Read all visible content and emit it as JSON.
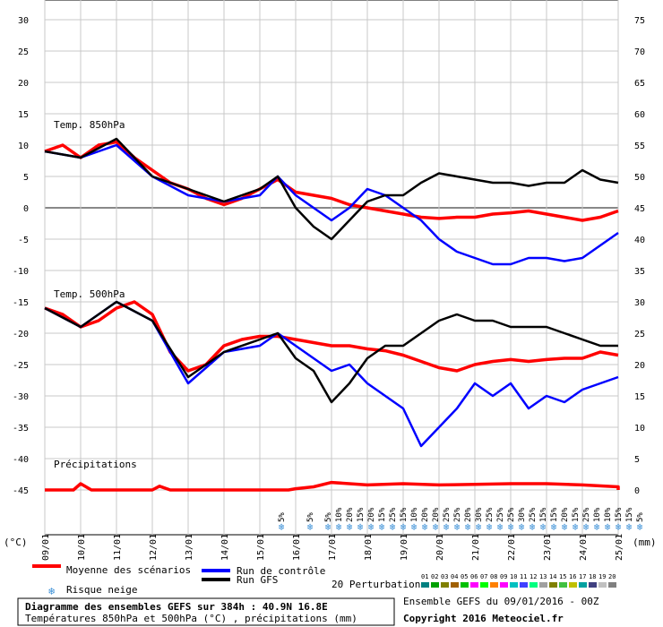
{
  "chart_data": {
    "type": "line",
    "x_dates": [
      "09/01",
      "10/01",
      "11/01",
      "12/01",
      "13/01",
      "14/01",
      "15/01",
      "16/01",
      "17/01",
      "18/01",
      "19/01",
      "20/01",
      "21/01",
      "22/01",
      "23/01",
      "24/01",
      "25/01"
    ],
    "x_unit_label": "(°C)",
    "x_unit_label_right": "(mm)",
    "left_axis": {
      "ticks": [
        30,
        25,
        20,
        15,
        10,
        5,
        0,
        -5,
        -10,
        -15,
        -20,
        -25,
        -30,
        -35,
        -40,
        -45
      ],
      "range": [
        -45,
        30
      ]
    },
    "right_axis": {
      "ticks": [
        75,
        70,
        65,
        60,
        55,
        50,
        45,
        40,
        35,
        30,
        25,
        20,
        15,
        10,
        5,
        0
      ],
      "range": [
        0,
        75
      ]
    },
    "panel_labels": {
      "t850": "Temp. 850hPa",
      "t500": "Temp. 500hPa",
      "precip": "Précipitations"
    },
    "series": [
      {
        "name": "Moyenne des scénarios",
        "color": "#ff0000",
        "t850": [
          [
            0,
            9
          ],
          [
            0.5,
            10
          ],
          [
            1,
            8
          ],
          [
            1.5,
            10
          ],
          [
            2,
            10.5
          ],
          [
            2.5,
            8
          ],
          [
            3,
            6
          ],
          [
            3.5,
            4
          ],
          [
            4,
            3
          ],
          [
            4.5,
            1.5
          ],
          [
            5,
            0.5
          ],
          [
            5.5,
            1.5
          ],
          [
            6,
            3
          ],
          [
            6.5,
            4.5
          ],
          [
            7,
            2.5
          ],
          [
            7.5,
            2
          ],
          [
            8,
            1.5
          ],
          [
            8.5,
            0.5
          ],
          [
            9,
            0
          ],
          [
            9.5,
            -0.5
          ],
          [
            10,
            -1
          ],
          [
            10.5,
            -1.5
          ],
          [
            11,
            -1.7
          ],
          [
            11.5,
            -1.5
          ],
          [
            12,
            -1.5
          ],
          [
            12.5,
            -1
          ],
          [
            13,
            -0.8
          ],
          [
            13.5,
            -0.5
          ],
          [
            14,
            -1
          ],
          [
            14.5,
            -1.5
          ],
          [
            15,
            -2
          ],
          [
            15.5,
            -1.5
          ],
          [
            16,
            -0.5
          ]
        ],
        "t500": [
          [
            0,
            -16
          ],
          [
            0.5,
            -17
          ],
          [
            1,
            -19
          ],
          [
            1.5,
            -18
          ],
          [
            2,
            -16
          ],
          [
            2.5,
            -15
          ],
          [
            3,
            -17
          ],
          [
            3.5,
            -23
          ],
          [
            4,
            -26
          ],
          [
            4.5,
            -25
          ],
          [
            5,
            -22
          ],
          [
            5.5,
            -21
          ],
          [
            6,
            -20.5
          ],
          [
            6.5,
            -20.5
          ],
          [
            7,
            -21
          ],
          [
            7.5,
            -21.5
          ],
          [
            8,
            -22
          ],
          [
            8.5,
            -22
          ],
          [
            9,
            -22.5
          ],
          [
            9.5,
            -22.8
          ],
          [
            10,
            -23.5
          ],
          [
            10.5,
            -24.5
          ],
          [
            11,
            -25.5
          ],
          [
            11.5,
            -26
          ],
          [
            12,
            -25
          ],
          [
            12.5,
            -24.5
          ],
          [
            13,
            -24.2
          ],
          [
            13.5,
            -24.5
          ],
          [
            14,
            -24.2
          ],
          [
            14.5,
            -24
          ],
          [
            15,
            -24
          ],
          [
            15.5,
            -23
          ],
          [
            16,
            -23.5
          ]
        ],
        "precip": [
          [
            0,
            0
          ],
          [
            0.8,
            0
          ],
          [
            1,
            1
          ],
          [
            1.3,
            0
          ],
          [
            3,
            0
          ],
          [
            3.2,
            0.6
          ],
          [
            3.5,
            0
          ],
          [
            6.8,
            0
          ],
          [
            7,
            0.2
          ],
          [
            7.5,
            0.5
          ],
          [
            8,
            1.2
          ],
          [
            9,
            0.8
          ],
          [
            10,
            1
          ],
          [
            11,
            0.8
          ],
          [
            12,
            0.9
          ],
          [
            13,
            1
          ],
          [
            14,
            1
          ],
          [
            15,
            0.8
          ],
          [
            16,
            0.5
          ],
          [
            16,
            0
          ]
        ]
      },
      {
        "name": "Run de contrôle",
        "color": "#0000ff",
        "t850": [
          [
            0,
            9
          ],
          [
            1,
            8
          ],
          [
            2,
            10
          ],
          [
            3,
            5
          ],
          [
            4,
            2
          ],
          [
            5,
            1
          ],
          [
            6,
            2
          ],
          [
            6.5,
            5
          ],
          [
            7,
            2
          ],
          [
            7.5,
            0
          ],
          [
            8,
            -2
          ],
          [
            8.5,
            0
          ],
          [
            9,
            3
          ],
          [
            9.5,
            2
          ],
          [
            10,
            0
          ],
          [
            10.5,
            -2
          ],
          [
            11,
            -5
          ],
          [
            11.5,
            -7
          ],
          [
            12,
            -8
          ],
          [
            12.5,
            -9
          ],
          [
            13,
            -9
          ],
          [
            13.5,
            -8
          ],
          [
            14,
            -8
          ],
          [
            14.5,
            -8.5
          ],
          [
            15,
            -8
          ],
          [
            15.5,
            -6
          ],
          [
            16,
            -4
          ]
        ],
        "t500": [
          [
            0,
            -16
          ],
          [
            1,
            -19
          ],
          [
            2,
            -15
          ],
          [
            3,
            -18
          ],
          [
            4,
            -28
          ],
          [
            5,
            -23
          ],
          [
            6,
            -22
          ],
          [
            6.5,
            -20
          ],
          [
            7,
            -22
          ],
          [
            7.5,
            -24
          ],
          [
            8,
            -26
          ],
          [
            8.5,
            -25
          ],
          [
            9,
            -28
          ],
          [
            9.5,
            -30
          ],
          [
            10,
            -32
          ],
          [
            10.5,
            -38
          ],
          [
            11,
            -35
          ],
          [
            11.5,
            -32
          ],
          [
            12,
            -28
          ],
          [
            12.5,
            -30
          ],
          [
            13,
            -28
          ],
          [
            13.5,
            -32
          ],
          [
            14,
            -30
          ],
          [
            14.5,
            -31
          ],
          [
            15,
            -29
          ],
          [
            15.5,
            -28
          ],
          [
            16,
            -27
          ]
        ]
      },
      {
        "name": "Run GFS",
        "color": "#000000",
        "t850": [
          [
            0,
            9
          ],
          [
            1,
            8
          ],
          [
            2,
            11
          ],
          [
            3,
            5
          ],
          [
            4,
            3
          ],
          [
            5,
            1
          ],
          [
            6,
            3
          ],
          [
            6.5,
            5
          ],
          [
            7,
            0
          ],
          [
            7.5,
            -3
          ],
          [
            8,
            -5
          ],
          [
            8.5,
            -2
          ],
          [
            9,
            1
          ],
          [
            9.5,
            2
          ],
          [
            10,
            2
          ],
          [
            10.5,
            4
          ],
          [
            11,
            5.5
          ],
          [
            11.5,
            5
          ],
          [
            12,
            4.5
          ],
          [
            12.5,
            4
          ],
          [
            13,
            4
          ],
          [
            13.5,
            3.5
          ],
          [
            14,
            4
          ],
          [
            14.5,
            4
          ],
          [
            15,
            6
          ],
          [
            15.5,
            4.5
          ],
          [
            16,
            4
          ]
        ],
        "t500": [
          [
            0,
            -16
          ],
          [
            1,
            -19
          ],
          [
            2,
            -15
          ],
          [
            3,
            -18
          ],
          [
            4,
            -27
          ],
          [
            5,
            -23
          ],
          [
            6,
            -21
          ],
          [
            6.5,
            -20
          ],
          [
            7,
            -24
          ],
          [
            7.5,
            -26
          ],
          [
            8,
            -31
          ],
          [
            8.5,
            -28
          ],
          [
            9,
            -24
          ],
          [
            9.5,
            -22
          ],
          [
            10,
            -22
          ],
          [
            10.5,
            -20
          ],
          [
            11,
            -18
          ],
          [
            11.5,
            -17
          ],
          [
            12,
            -18
          ],
          [
            12.5,
            -18
          ],
          [
            13,
            -19
          ],
          [
            13.5,
            -19
          ],
          [
            14,
            -19
          ],
          [
            14.5,
            -20
          ],
          [
            15,
            -21
          ],
          [
            15.5,
            -22
          ],
          [
            16,
            -22
          ]
        ]
      }
    ],
    "snow_risk": [
      {
        "x": 6.6,
        "label": "5%"
      },
      {
        "x": 7.4,
        "label": "5%"
      },
      {
        "x": 7.9,
        "label": "5%"
      },
      {
        "x": 8.2,
        "label": "10%"
      },
      {
        "x": 8.5,
        "label": "20%"
      },
      {
        "x": 8.8,
        "label": "15%"
      },
      {
        "x": 9.1,
        "label": "20%"
      },
      {
        "x": 9.4,
        "label": "15%"
      },
      {
        "x": 9.7,
        "label": "25%"
      },
      {
        "x": 10.0,
        "label": "15%"
      },
      {
        "x": 10.3,
        "label": "10%"
      },
      {
        "x": 10.6,
        "label": "20%"
      },
      {
        "x": 10.9,
        "label": "20%"
      },
      {
        "x": 11.2,
        "label": "25%"
      },
      {
        "x": 11.5,
        "label": "25%"
      },
      {
        "x": 11.8,
        "label": "20%"
      },
      {
        "x": 12.1,
        "label": "30%"
      },
      {
        "x": 12.4,
        "label": "25%"
      },
      {
        "x": 12.7,
        "label": "25%"
      },
      {
        "x": 13.0,
        "label": "25%"
      },
      {
        "x": 13.3,
        "label": "30%"
      },
      {
        "x": 13.6,
        "label": "25%"
      },
      {
        "x": 13.9,
        "label": "15%"
      },
      {
        "x": 14.2,
        "label": "15%"
      },
      {
        "x": 14.5,
        "label": "20%"
      },
      {
        "x": 14.8,
        "label": "15%"
      },
      {
        "x": 15.1,
        "label": "25%"
      },
      {
        "x": 15.4,
        "label": "10%"
      },
      {
        "x": 15.7,
        "label": "10%"
      },
      {
        "x": 16.0,
        "label": "15%"
      },
      {
        "x": 16.3,
        "label": "15%"
      },
      {
        "x": 16.6,
        "label": "5%"
      }
    ],
    "perturbation_colors": [
      "#008080",
      "#00a000",
      "#808000",
      "#a06000",
      "#00c000",
      "#ff00ff",
      "#00ff00",
      "#ff8000",
      "#ff00ff",
      "#00c0c0",
      "#4040ff",
      "#00ff80",
      "#a0a0a0",
      "#808000",
      "#40c040",
      "#c0c000",
      "#00a0a0",
      "#404080",
      "#c0c0c0",
      "#808080"
    ]
  },
  "legend": {
    "mean_label": "Moyenne des scénarios",
    "control_label": "Run de contrôle",
    "gfs_label": "Run GFS",
    "snow_label": "Risque neige",
    "perturbations_label": "20 Perturbations",
    "perturbation_numbers": [
      "01",
      "02",
      "03",
      "04",
      "05",
      "06",
      "07",
      "08",
      "09",
      "10",
      "11",
      "12",
      "13",
      "14",
      "15",
      "16",
      "17",
      "18",
      "19",
      "20"
    ]
  },
  "footer": {
    "title": "Diagramme des ensembles GEFS sur 384h : 40.9N 16.8E",
    "subtitle": "Températures 850hPa et 500hPa (°C) , précipitations (mm)",
    "run_info": "Ensemble GEFS du 09/01/2016 - 00Z",
    "copyright": "Copyright 2016 Meteociel.fr"
  }
}
